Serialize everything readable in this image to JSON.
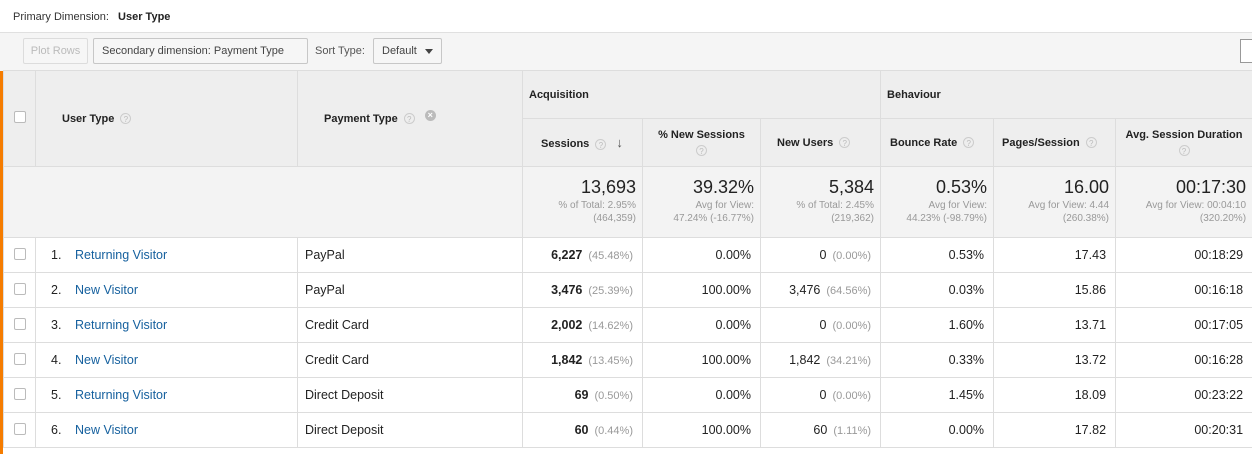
{
  "primary_dimension": {
    "label": "Primary Dimension:",
    "value": "User Type"
  },
  "toolbar": {
    "plot_rows": "Plot Rows",
    "secondary_dimension": "Secondary dimension: Payment Type",
    "sort_type_label": "Sort Type:",
    "sort_type_value": "Default"
  },
  "headers": {
    "user_type": "User Type",
    "payment_type": "Payment Type",
    "acquisition": "Acquisition",
    "behaviour": "Behaviour",
    "sessions": "Sessions",
    "pct_new_sessions": "% New Sessions",
    "new_users": "New Users",
    "bounce_rate": "Bounce Rate",
    "pages_session": "Pages/Session",
    "avg_session_duration": "Avg. Session Duration",
    "help_glyph": "?",
    "remove_glyph": "×",
    "sort_arrow": "↓"
  },
  "totals": {
    "sessions": {
      "value": "13,693",
      "line1": "% of Total: 2.95%",
      "line2": "(464,359)"
    },
    "pct_new_sessions": {
      "value": "39.32%",
      "line1": "Avg for View:",
      "line2": "47.24% (-16.77%)"
    },
    "new_users": {
      "value": "5,384",
      "line1": "% of Total: 2.45%",
      "line2": "(219,362)"
    },
    "bounce_rate": {
      "value": "0.53%",
      "line1": "Avg for View:",
      "line2": "44.23% (-98.79%)"
    },
    "pages_session": {
      "value": "16.00",
      "line1": "Avg for View: 4.44",
      "line2": "(260.38%)"
    },
    "avg_session_duration": {
      "value": "00:17:30",
      "line1": "Avg for View: 00:04:10",
      "line2": "(320.20%)"
    }
  },
  "rows": [
    {
      "num": "1.",
      "user_type": "Returning Visitor",
      "payment": "PayPal",
      "sessions": "6,227",
      "sessions_pct": "(45.48%)",
      "pct_new": "0.00%",
      "new_users": "0",
      "new_users_pct": "(0.00%)",
      "bounce": "0.53%",
      "pages": "17.43",
      "duration": "00:18:29"
    },
    {
      "num": "2.",
      "user_type": "New Visitor",
      "payment": "PayPal",
      "sessions": "3,476",
      "sessions_pct": "(25.39%)",
      "pct_new": "100.00%",
      "new_users": "3,476",
      "new_users_pct": "(64.56%)",
      "bounce": "0.03%",
      "pages": "15.86",
      "duration": "00:16:18"
    },
    {
      "num": "3.",
      "user_type": "Returning Visitor",
      "payment": "Credit Card",
      "sessions": "2,002",
      "sessions_pct": "(14.62%)",
      "pct_new": "0.00%",
      "new_users": "0",
      "new_users_pct": "(0.00%)",
      "bounce": "1.60%",
      "pages": "13.71",
      "duration": "00:17:05"
    },
    {
      "num": "4.",
      "user_type": "New Visitor",
      "payment": "Credit Card",
      "sessions": "1,842",
      "sessions_pct": "(13.45%)",
      "pct_new": "100.00%",
      "new_users": "1,842",
      "new_users_pct": "(34.21%)",
      "bounce": "0.33%",
      "pages": "13.72",
      "duration": "00:16:28"
    },
    {
      "num": "5.",
      "user_type": "Returning Visitor",
      "payment": "Direct Deposit",
      "sessions": "69",
      "sessions_pct": "(0.50%)",
      "pct_new": "0.00%",
      "new_users": "0",
      "new_users_pct": "(0.00%)",
      "bounce": "1.45%",
      "pages": "18.09",
      "duration": "00:23:22"
    },
    {
      "num": "6.",
      "user_type": "New Visitor",
      "payment": "Direct Deposit",
      "sessions": "60",
      "sessions_pct": "(0.44%)",
      "pct_new": "100.00%",
      "new_users": "60",
      "new_users_pct": "(1.11%)",
      "bounce": "0.00%",
      "pages": "17.82",
      "duration": "00:20:31"
    }
  ]
}
